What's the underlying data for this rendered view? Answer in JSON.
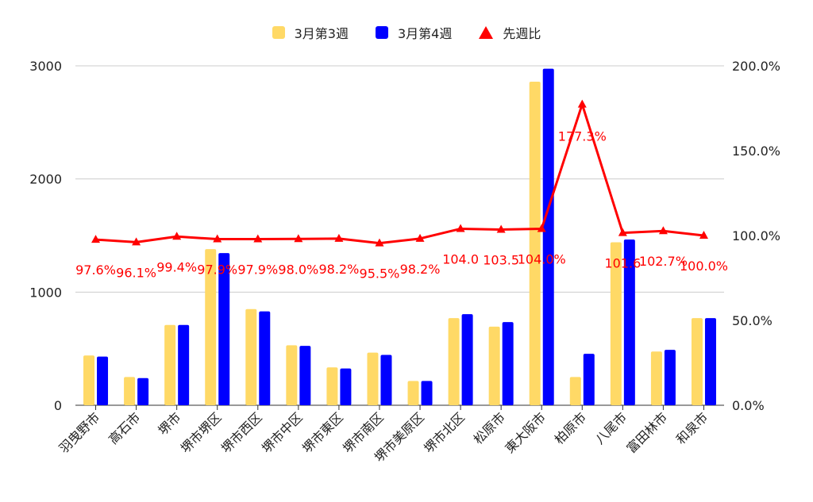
{
  "chart_data": {
    "type": "bar",
    "categories": [
      "羽曳野市",
      "高石市",
      "堺市",
      "堺市堺区",
      "堺市西区",
      "堺市中区",
      "堺市東区",
      "堺市南区",
      "堺市美原区",
      "堺市北区",
      "松原市",
      "東大阪市",
      "柏原市",
      "八尾市",
      "富田林市",
      "和泉市"
    ],
    "series": [
      {
        "name": "3月第3週",
        "color": "#ffd966",
        "axis": "left",
        "values": [
          440,
          250,
          710,
          1380,
          850,
          530,
          335,
          465,
          215,
          770,
          695,
          2860,
          250,
          1440,
          475,
          770
        ]
      },
      {
        "name": "3月第4週",
        "color": "#0000ff",
        "axis": "left",
        "values": [
          430,
          240,
          710,
          1345,
          830,
          525,
          325,
          445,
          215,
          805,
          735,
          2975,
          455,
          1465,
          490,
          770
        ]
      },
      {
        "name": "先週比",
        "color": "#ff0000",
        "axis": "right",
        "type": "line",
        "marker": "triangle",
        "values": [
          97.6,
          96.1,
          99.4,
          97.9,
          97.9,
          98.0,
          98.2,
          95.5,
          98.2,
          104.0,
          103.5,
          104.0,
          177.3,
          101.6,
          102.7,
          100.0
        ],
        "labels": [
          "97.6%",
          "96.1%",
          "99.4%",
          "97.9%",
          "97.9%",
          "98.0%",
          "98.2%",
          "95.5%",
          "98.2%",
          "104.0",
          "103.5",
          "104.0%",
          "177.3%",
          "101.6",
          "102.7%",
          "100.0%"
        ]
      }
    ],
    "left_axis": {
      "ticks": [
        "0",
        "1000",
        "2000",
        "3000"
      ],
      "tick_values": [
        0,
        1000,
        2000,
        3000
      ],
      "range": [
        0,
        3000
      ]
    },
    "right_axis": {
      "ticks": [
        "0.0%",
        "50.0%",
        "100.0%",
        "150.0%",
        "200.0%"
      ],
      "tick_values": [
        0,
        50,
        100,
        150,
        200
      ],
      "range": [
        0,
        200
      ]
    },
    "grid": true,
    "legend_position": "top-center"
  },
  "legend": {
    "item1": "3月第3週",
    "item2": "3月第4週",
    "item3": "先週比",
    "color1": "#ffd966",
    "color2": "#0000ff",
    "color3": "#ff0000"
  }
}
